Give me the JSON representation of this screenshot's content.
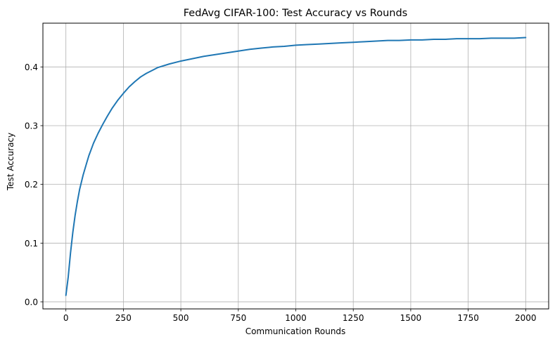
{
  "chart_data": {
    "type": "line",
    "title": "FedAvg CIFAR-100: Test Accuracy vs Rounds",
    "xlabel": "Communication Rounds",
    "ylabel": "Test Accuracy",
    "xlim": [
      -100,
      2100
    ],
    "ylim": [
      -0.012,
      0.4745
    ],
    "xticks": [
      0,
      250,
      500,
      750,
      1000,
      1250,
      1500,
      1750,
      2000
    ],
    "xtick_labels": [
      "0",
      "250",
      "500",
      "750",
      "1000",
      "1250",
      "1500",
      "1750",
      "2000"
    ],
    "yticks": [
      0.0,
      0.1,
      0.2,
      0.3,
      0.4
    ],
    "ytick_labels": [
      "0.0",
      "0.1",
      "0.2",
      "0.3",
      "0.4"
    ],
    "grid": true,
    "line_color": "#1f77b4",
    "series": [
      {
        "x": [
          0,
          10,
          20,
          30,
          40,
          50,
          60,
          75,
          90,
          100,
          120,
          140,
          160,
          180,
          200,
          225,
          250,
          275,
          300,
          325,
          350,
          375,
          400,
          450,
          500,
          550,
          600,
          650,
          700,
          750,
          800,
          850,
          900,
          950,
          1000,
          1050,
          1100,
          1150,
          1200,
          1250,
          1300,
          1350,
          1400,
          1450,
          1500,
          1550,
          1600,
          1650,
          1700,
          1750,
          1800,
          1850,
          1900,
          1950,
          2000
        ],
        "values": [
          0.011,
          0.042,
          0.083,
          0.118,
          0.147,
          0.171,
          0.192,
          0.216,
          0.236,
          0.249,
          0.27,
          0.287,
          0.302,
          0.316,
          0.329,
          0.343,
          0.355,
          0.366,
          0.375,
          0.383,
          0.389,
          0.394,
          0.399,
          0.405,
          0.41,
          0.414,
          0.418,
          0.421,
          0.424,
          0.427,
          0.43,
          0.432,
          0.434,
          0.435,
          0.437,
          0.438,
          0.439,
          0.44,
          0.441,
          0.442,
          0.443,
          0.444,
          0.445,
          0.445,
          0.446,
          0.446,
          0.447,
          0.447,
          0.448,
          0.448,
          0.448,
          0.449,
          0.449,
          0.449,
          0.45
        ]
      }
    ]
  }
}
